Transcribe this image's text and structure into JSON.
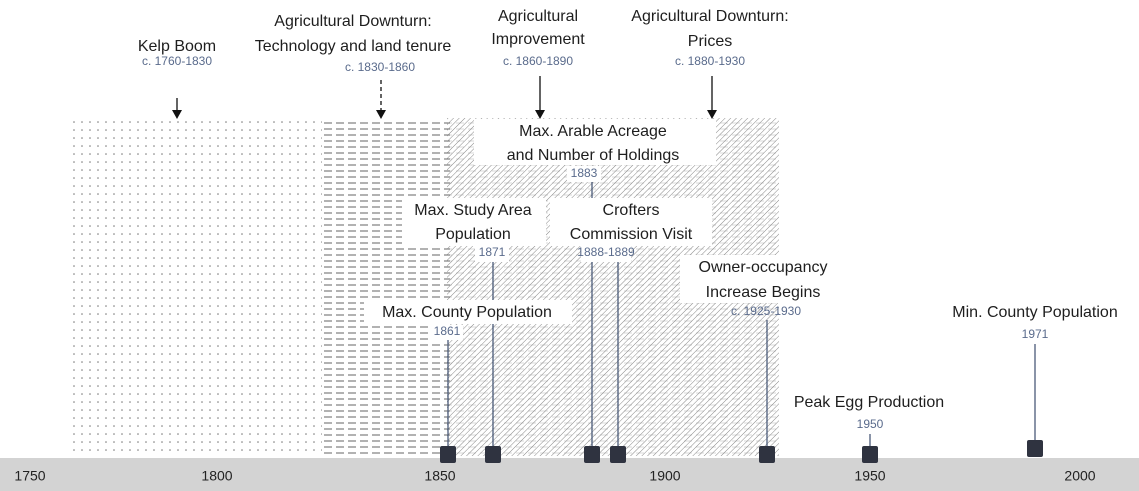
{
  "axis": {
    "ticks": [
      "1750",
      "1800",
      "1850",
      "1900",
      "1950",
      "2000"
    ]
  },
  "periods": [
    {
      "label": [
        "Kelp Boom"
      ],
      "date": "c. 1760-1830"
    },
    {
      "label": [
        "Agricultural Downturn:",
        "Technology and land tenure"
      ],
      "date": "c. 1830-1860"
    },
    {
      "label": [
        "Agricultural",
        "Improvement"
      ],
      "date": "c. 1860-1890"
    },
    {
      "label": [
        "Agricultural Downturn:",
        "Prices"
      ],
      "date": "c. 1880-1930"
    }
  ],
  "events": [
    {
      "label": [
        "Max. Arable Acreage",
        "and Number of Holdings"
      ],
      "date": "1883"
    },
    {
      "label": [
        "Max. Study Area",
        "Population"
      ],
      "date": "1871"
    },
    {
      "label": [
        "Crofters",
        "Commission Visit"
      ],
      "date": "1888-1889"
    },
    {
      "label": [
        "Owner-occupancy",
        "Increase Begins"
      ],
      "date": "c. 1925-1930"
    },
    {
      "label": [
        "Max. County Population"
      ],
      "date": "1861"
    },
    {
      "label": [
        "Peak Egg Production"
      ],
      "date": "1950"
    },
    {
      "label": [
        "Min. County Population"
      ],
      "date": "1971"
    }
  ]
}
